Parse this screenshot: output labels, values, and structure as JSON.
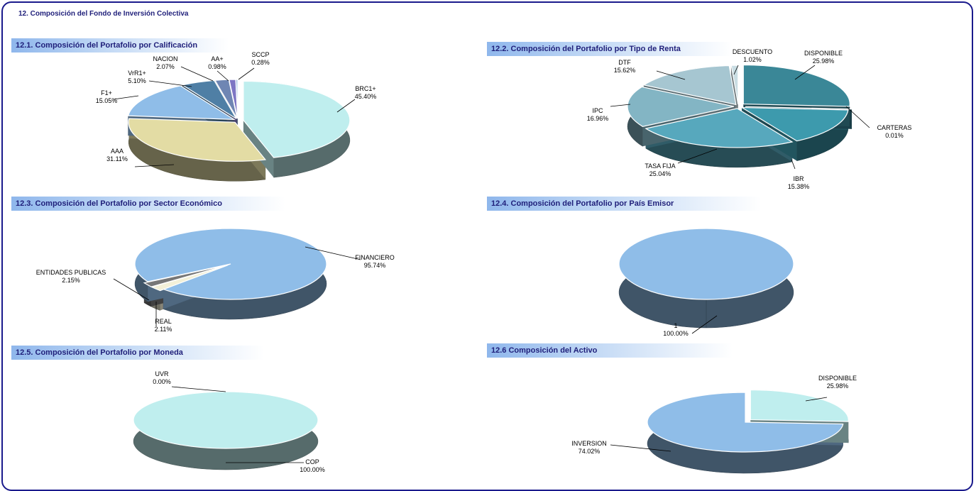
{
  "main_title": "12. Composición del Fondo de Inversión Colectiva",
  "sections": [
    {
      "title": "12.1. Composición del Portafolio por Calificación"
    },
    {
      "title": "12.2. Composición del Portafolio por Tipo de Renta"
    },
    {
      "title": "12.3. Composición del Portafolio por Sector Económico"
    },
    {
      "title": "12.4. Composición del Portafolio por País Emisor"
    },
    {
      "title": "12.5. Composición del Portafolio por Moneda"
    },
    {
      "title": "12.6 Composición del Activo"
    }
  ],
  "chart_data": [
    {
      "type": "pie",
      "title": "12.1. Composición del Portafolio por Calificación",
      "slices": [
        {
          "label": "BRC1+",
          "value": "45.40%",
          "pct": 45.4,
          "color": "#bfeeee"
        },
        {
          "label": "AAA",
          "value": "31.11%",
          "pct": 31.11,
          "color": "#e3dca4"
        },
        {
          "label": "F1+",
          "value": "15.05%",
          "pct": 15.05,
          "color": "#8fbde8"
        },
        {
          "label": "VrR1+",
          "value": "5.10%",
          "pct": 5.1,
          "color": "#4f7fa5"
        },
        {
          "label": "NACION",
          "value": "2.07%",
          "pct": 2.07,
          "color": "#6f86b3"
        },
        {
          "label": "AA+",
          "value": "0.98%",
          "pct": 0.98,
          "color": "#7d76c4"
        },
        {
          "label": "SCCP",
          "value": "0.28%",
          "pct": 0.28,
          "color": "#9bbde0"
        }
      ]
    },
    {
      "type": "pie",
      "title": "12.2. Composición del Portafolio por Tipo de Renta",
      "slices": [
        {
          "label": "DISPONIBLE",
          "value": "25.98%",
          "pct": 25.98,
          "color": "#3a8797"
        },
        {
          "label": "CARTERAS",
          "value": "0.01%",
          "pct": 0.01,
          "color": "#2f7586"
        },
        {
          "label": "IBR",
          "value": "15.38%",
          "pct": 15.38,
          "color": "#3d9aad"
        },
        {
          "label": "TASA FIJA",
          "value": "25.04%",
          "pct": 25.04,
          "color": "#57a8bd"
        },
        {
          "label": "IPC",
          "value": "16.96%",
          "pct": 16.96,
          "color": "#83b5c4"
        },
        {
          "label": "DTF",
          "value": "15.62%",
          "pct": 15.62,
          "color": "#a6c6d1"
        },
        {
          "label": "DESCUENTO",
          "value": "1.02%",
          "pct": 1.02,
          "color": "#c9dde3"
        }
      ]
    },
    {
      "type": "pie",
      "title": "12.3. Composición del Portafolio por Sector Económico",
      "slices": [
        {
          "label": "FINANCIERO",
          "value": "95.74%",
          "pct": 95.74,
          "color": "#8fbde8"
        },
        {
          "label": "ENTIDADES PUBLICAS",
          "value": "2.15%",
          "pct": 2.15,
          "color": "#f3f0d8"
        },
        {
          "label": "REAL",
          "value": "2.11%",
          "pct": 2.11,
          "color": "#777777"
        }
      ]
    },
    {
      "type": "pie",
      "title": "12.4. Composición del Portafolio por País Emisor",
      "slices": [
        {
          "label": "1",
          "value": "100.00%",
          "pct": 100.0,
          "color": "#8fbde8"
        }
      ]
    },
    {
      "type": "pie",
      "title": "12.5. Composición del Portafolio por Moneda",
      "slices": [
        {
          "label": "UVR",
          "value": "0.00%",
          "pct": 0.0,
          "color": "#bfeeee"
        },
        {
          "label": "COP",
          "value": "100.00%",
          "pct": 100.0,
          "color": "#bfeeee"
        }
      ]
    },
    {
      "type": "pie",
      "title": "12.6 Composición del Activo",
      "slices": [
        {
          "label": "DISPONIBLE",
          "value": "25.98%",
          "pct": 25.98,
          "color": "#bfeeee"
        },
        {
          "label": "INVERSION",
          "value": "74.02%",
          "pct": 74.02,
          "color": "#8fbde8"
        }
      ]
    }
  ]
}
